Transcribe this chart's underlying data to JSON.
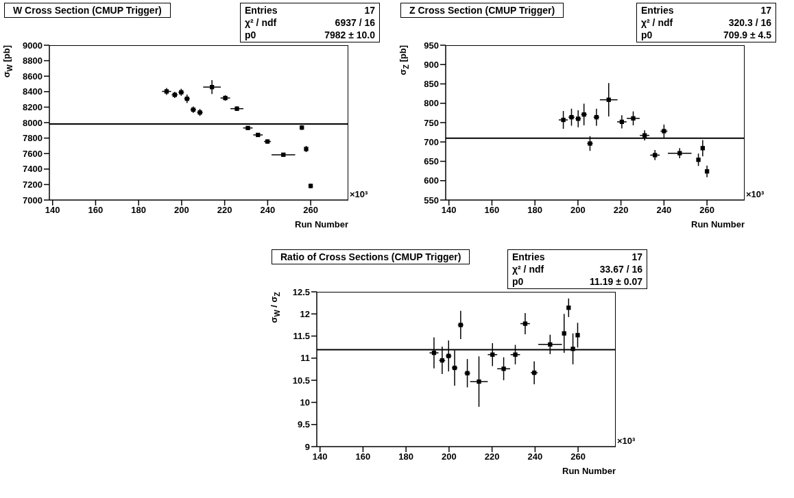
{
  "chart_data": [
    {
      "type": "scatter",
      "title": "W Cross Section (CMUP Trigger)",
      "xlabel": "Run Number",
      "ylabel": "σ$_{W}$ [pb]",
      "color": "#000000",
      "marker": "square",
      "x": [
        193.0,
        196.8,
        199.8,
        202.5,
        205.4,
        208.5,
        214.1,
        220.3,
        225.7,
        230.8,
        235.5,
        239.9,
        247.3,
        255.9,
        257.9,
        260.0
      ],
      "values": [
        8403,
        8359,
        8392,
        8308,
        8167,
        8131,
        8459,
        8318,
        8180,
        7931,
        7841,
        7756,
        7585,
        7936,
        7659,
        7182
      ],
      "errors": [
        45,
        40,
        45,
        55,
        40,
        45,
        90,
        35,
        30,
        20,
        20,
        25,
        15,
        30,
        40,
        30
      ],
      "xerrors": [
        2.1,
        1.4,
        1.3,
        1.3,
        1.3,
        1.3,
        4.1,
        2.2,
        3.0,
        2.2,
        2.2,
        1.6,
        5.5,
        0.8,
        0.8,
        0.8
      ],
      "xlim": [
        138.5,
        277.5
      ],
      "xticks": [
        140,
        160,
        180,
        200,
        220,
        240,
        260
      ],
      "ylim": [
        7000,
        9000
      ],
      "yticks": [
        7000,
        7200,
        7400,
        7600,
        7800,
        8000,
        8200,
        8400,
        8600,
        8800,
        9000
      ],
      "ref_lines": [
        {
          "axis": "y",
          "value": 7982,
          "color": "#000000"
        }
      ],
      "annotations": [
        "×10³",
        "Entries",
        "17",
        "χ² / ndf",
        "6937 / 16",
        "p0",
        "7982 ± 10.0"
      ]
    },
    {
      "type": "scatter",
      "title": "Z Cross Section (CMUP Trigger)",
      "xlabel": "Run Number",
      "ylabel": "σ$_{Z}$ [pb]",
      "color": "#000000",
      "marker": "square",
      "x": [
        193.2,
        197.0,
        200.1,
        202.8,
        205.6,
        208.6,
        214.3,
        220.4,
        225.7,
        231.0,
        235.8,
        240.0,
        247.3,
        256.0,
        258.0,
        260.0
      ],
      "values": [
        757,
        764,
        760,
        771,
        696,
        764,
        809,
        752,
        761,
        717,
        666,
        728,
        671,
        654,
        684,
        624
      ],
      "errors": [
        23,
        22,
        22,
        28,
        19,
        22,
        43,
        17,
        18,
        13,
        13,
        17,
        13,
        16,
        21,
        15
      ],
      "xerrors": [
        2.1,
        1.4,
        1.3,
        1.3,
        1.3,
        1.3,
        4.1,
        2.2,
        3.0,
        2.2,
        2.2,
        1.6,
        5.5,
        0.8,
        0.8,
        0.8
      ],
      "xlim": [
        138.5,
        277.5
      ],
      "xticks": [
        140,
        160,
        180,
        200,
        220,
        240,
        260
      ],
      "ylim": [
        550,
        950
      ],
      "yticks": [
        550,
        600,
        650,
        700,
        750,
        800,
        850,
        900,
        950
      ],
      "ref_lines": [
        {
          "axis": "y",
          "value": 709.9,
          "color": "#000000"
        }
      ],
      "annotations": [
        "×10³",
        "Entries",
        "17",
        "χ² / ndf",
        "320.3 / 16",
        "p0",
        "709.9 ± 4.5"
      ]
    },
    {
      "type": "scatter",
      "title": "Ratio of Cross Sections (CMUP Trigger)",
      "xlabel": "Run Number",
      "ylabel": "σ$_{W}$ / σ$_{Z}$",
      "color": "#000000",
      "marker": "square",
      "x": [
        193.0,
        196.8,
        199.8,
        202.6,
        205.4,
        208.5,
        213.9,
        220.2,
        225.4,
        230.8,
        235.4,
        239.6,
        247.0,
        253.5,
        255.6,
        257.6,
        259.8
      ],
      "values": [
        11.12,
        10.95,
        11.05,
        10.78,
        11.75,
        10.66,
        10.47,
        11.08,
        10.76,
        11.08,
        11.78,
        10.67,
        11.31,
        11.56,
        12.14,
        11.21,
        11.52
      ],
      "errors": [
        0.35,
        0.31,
        0.35,
        0.4,
        0.32,
        0.32,
        0.57,
        0.26,
        0.26,
        0.22,
        0.24,
        0.26,
        0.22,
        0.44,
        0.21,
        0.35,
        0.28
      ],
      "xerrors": [
        2.1,
        1.4,
        1.3,
        1.3,
        1.3,
        1.3,
        4.1,
        2.2,
        3.0,
        2.2,
        2.2,
        1.6,
        5.5,
        0.5,
        0.5,
        0.5,
        0.5
      ],
      "xlim": [
        138.5,
        277.5
      ],
      "xticks": [
        140,
        160,
        180,
        200,
        220,
        240,
        260
      ],
      "ylim": [
        9,
        12.5
      ],
      "yticks": [
        9,
        9.5,
        10,
        10.5,
        11,
        11.5,
        12,
        12.5
      ],
      "ref_lines": [
        {
          "axis": "y",
          "value": 11.19,
          "color": "#000000"
        }
      ],
      "annotations": [
        "×10³",
        "Entries",
        "17",
        "χ² / ndf",
        "33.67 / 16",
        "p0",
        "11.19 ± 0.07"
      ]
    }
  ]
}
